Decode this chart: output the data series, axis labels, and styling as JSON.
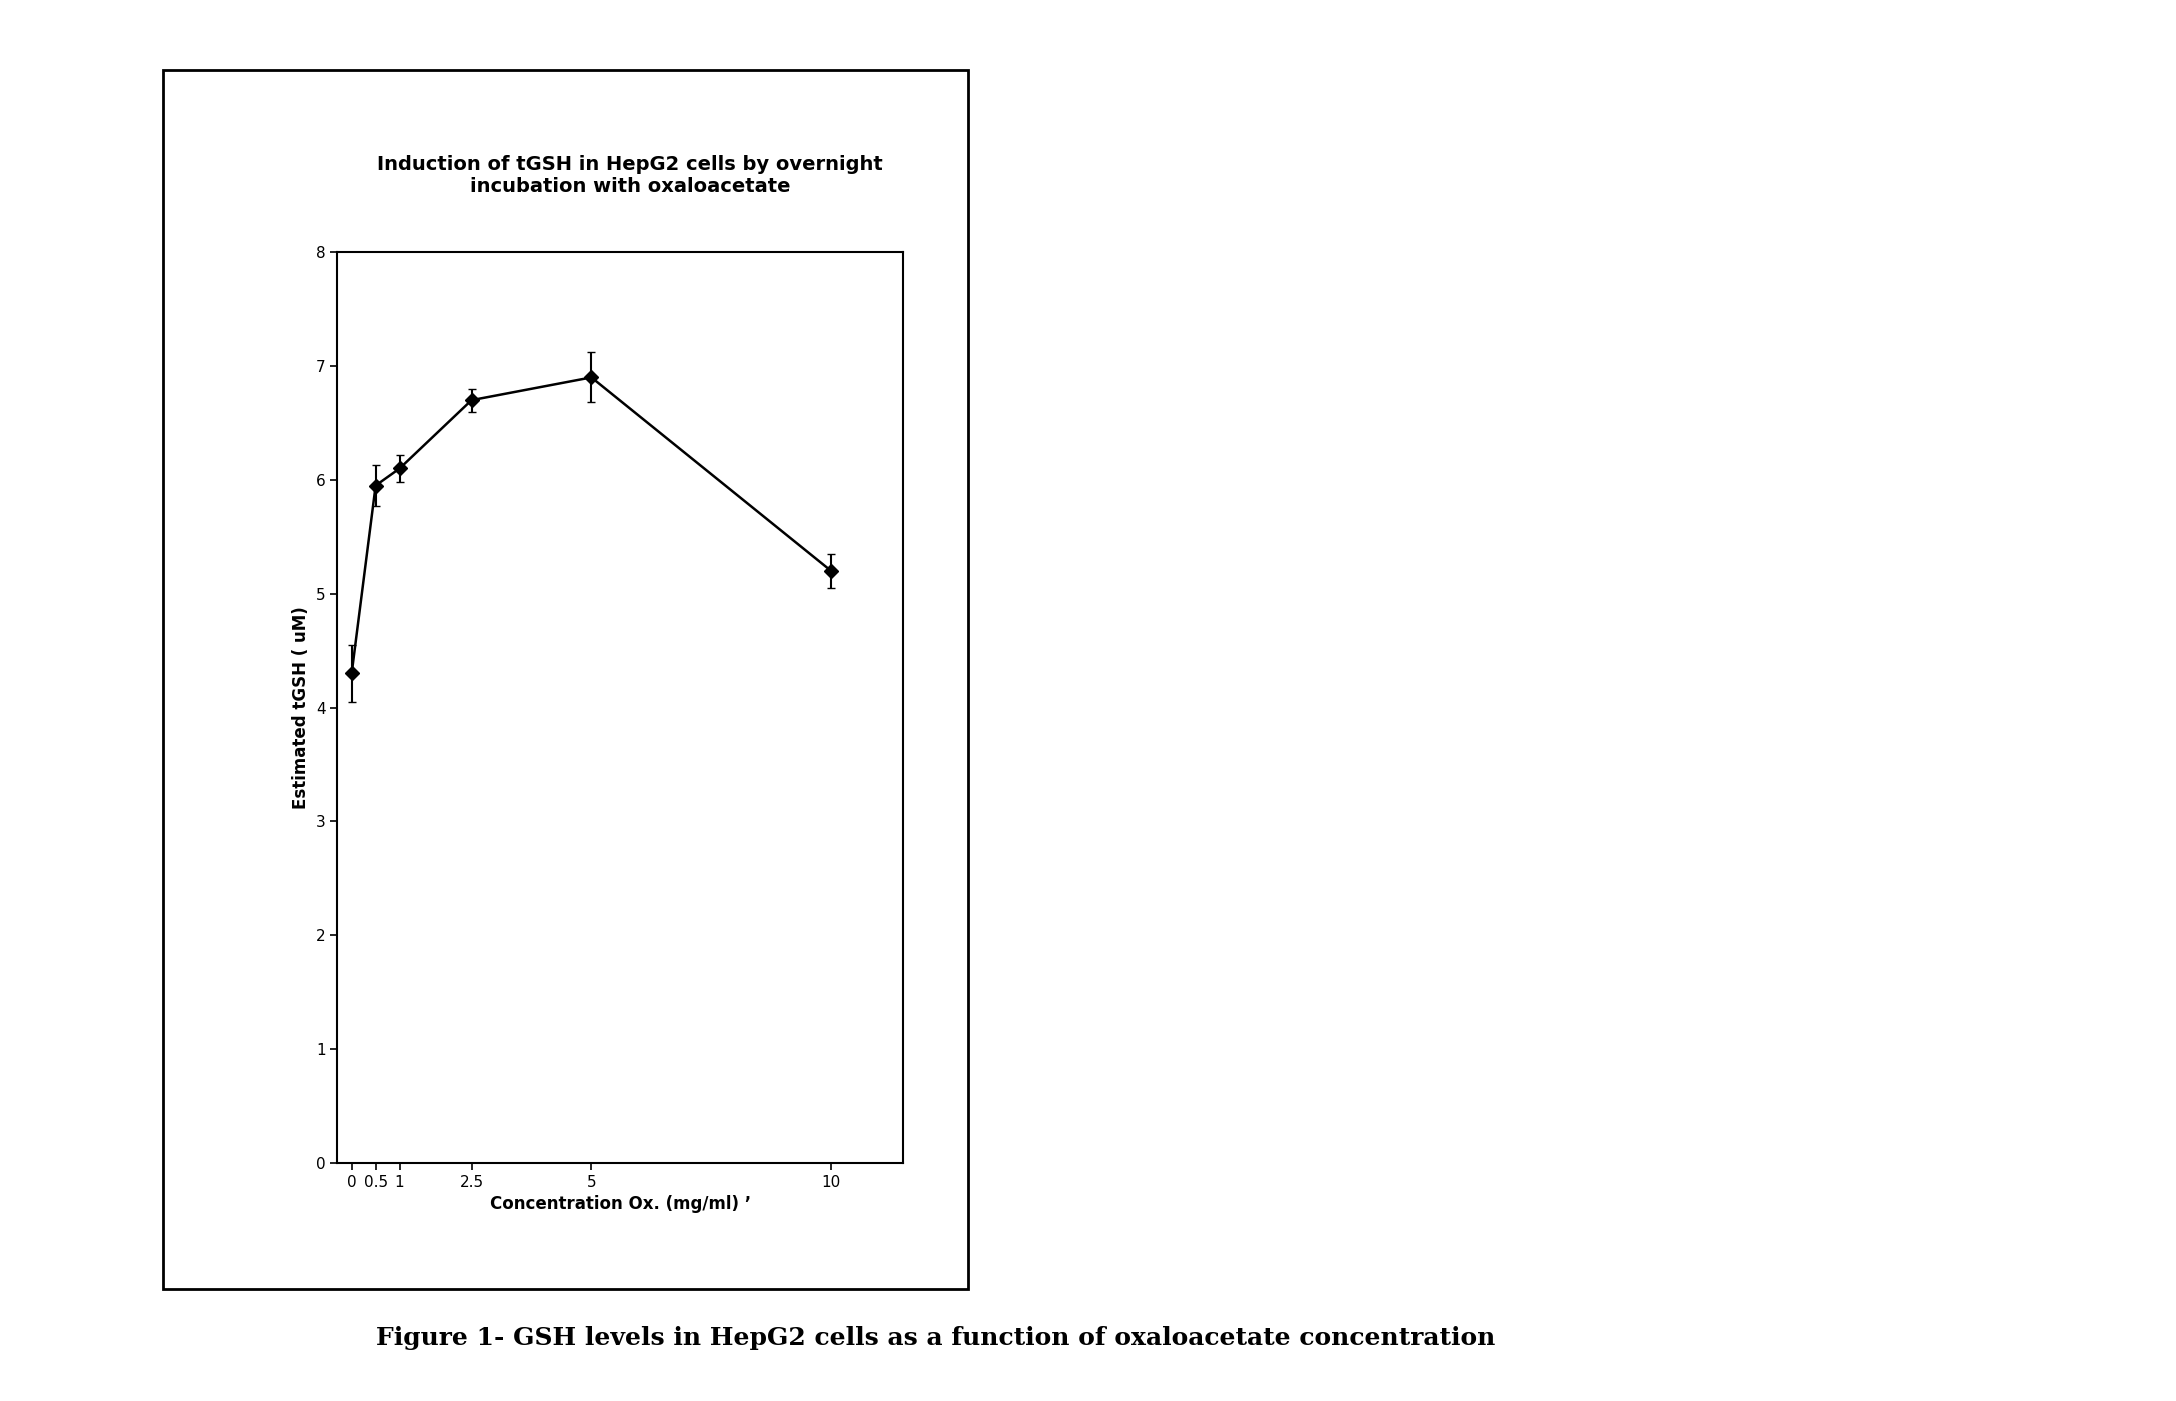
{
  "title_line1": "Induction of tGSH in HepG2 cells by overnight",
  "title_line2": "incubation with oxaloacetate",
  "xlabel": "Concentration Ox. (mg/ml) ’",
  "ylabel": "Estimated tGSH ( uM)",
  "x": [
    0,
    0.5,
    1,
    2.5,
    5,
    10
  ],
  "y": [
    4.3,
    5.95,
    6.1,
    6.7,
    6.9,
    5.2
  ],
  "yerr": [
    0.25,
    0.18,
    0.12,
    0.1,
    0.22,
    0.15
  ],
  "ylim": [
    0,
    8
  ],
  "yticks": [
    0,
    1,
    2,
    3,
    4,
    5,
    6,
    7,
    8
  ],
  "xticks": [
    0,
    0.5,
    1,
    2.5,
    5,
    10
  ],
  "xticklabels": [
    "0",
    "0.5",
    "1",
    "2.5",
    "5",
    "10"
  ],
  "line_color": "#000000",
  "marker": "D",
  "marker_size": 7,
  "marker_color": "#000000",
  "caption": "Figure 1- GSH levels in HepG2 cells as a function of oxaloacetate concentration",
  "background_color": "#ffffff",
  "title_fontsize": 14,
  "axis_label_fontsize": 12,
  "tick_fontsize": 11,
  "caption_fontsize": 18
}
